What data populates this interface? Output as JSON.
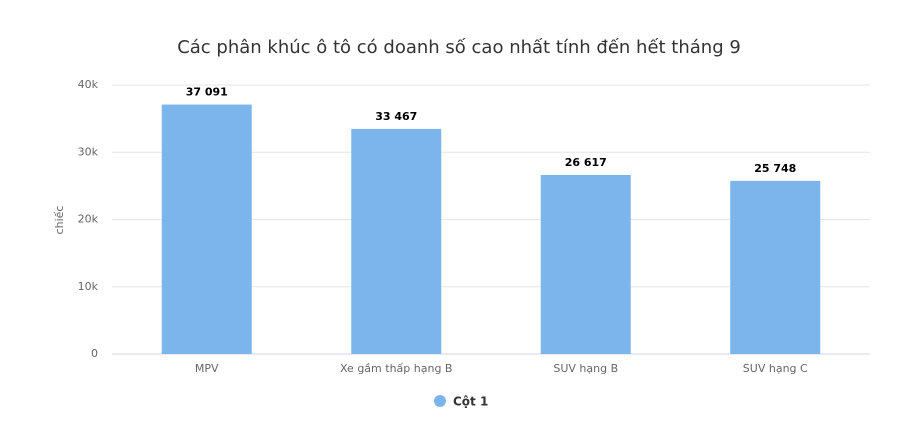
{
  "chart_data": {
    "type": "bar",
    "title": "Các phân khúc ô tô có doanh số cao nhất tính đến hết tháng 9",
    "y_label": "chiếc",
    "categories": [
      "MPV",
      "Xe gầm thấp hạng B",
      "SUV hạng B",
      "SUV hạng C"
    ],
    "series": [
      {
        "name": "Cột 1",
        "color": "#7cb5ec",
        "values": [
          37091,
          33467,
          26617,
          25748
        ],
        "value_labels": [
          "37 091",
          "33 467",
          "26 617",
          "25 748"
        ]
      }
    ],
    "ylim": [
      0,
      40000
    ],
    "yticks": [
      0,
      {
        "value": 10000,
        "label": "10k"
      },
      {
        "value": 20000,
        "label": "20k"
      },
      {
        "value": 30000,
        "label": "30k"
      },
      {
        "value": 40000,
        "label": "40k"
      }
    ],
    "grid": true,
    "legend": "bottom"
  }
}
